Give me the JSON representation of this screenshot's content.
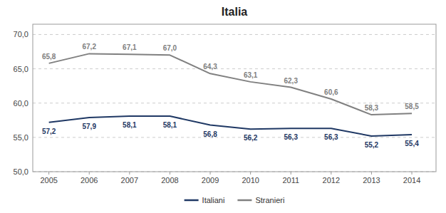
{
  "chart_data": {
    "type": "line",
    "title": "Italia",
    "x": [
      2005,
      2006,
      2007,
      2008,
      2009,
      2010,
      2011,
      2012,
      2013,
      2014
    ],
    "xlim": [
      2004.6,
      2014.6
    ],
    "xticks": [
      2005,
      2006,
      2007,
      2008,
      2009,
      2010,
      2011,
      2012,
      2013,
      2014
    ],
    "ylim": [
      50.0,
      71.5
    ],
    "yticks": [
      {
        "value": 50.0,
        "label": "50,0"
      },
      {
        "value": 55.0,
        "label": "55,0"
      },
      {
        "value": 60.0,
        "label": "60,0"
      },
      {
        "value": 65.0,
        "label": "65,0"
      },
      {
        "value": 70.0,
        "label": "70,0"
      }
    ],
    "grid": true,
    "legend": "bottom",
    "data_labels": true,
    "series": [
      {
        "name": "Italiani",
        "color": "#1F3864",
        "values": [
          57.2,
          57.9,
          58.1,
          58.1,
          56.8,
          56.2,
          56.3,
          56.3,
          55.2,
          55.4
        ],
        "value_labels": [
          "57,2",
          "57,9",
          "58,1",
          "58,1",
          "56,8",
          "56,2",
          "56,3",
          "56,3",
          "55,2",
          "55,4"
        ]
      },
      {
        "name": "Stranieri",
        "color": "#808080",
        "values": [
          65.8,
          67.2,
          67.1,
          67.0,
          64.3,
          63.1,
          62.3,
          60.6,
          58.3,
          58.5
        ],
        "value_labels": [
          "65,8",
          "67,2",
          "67,1",
          "67,0",
          "64,3",
          "63,1",
          "62,3",
          "60,6",
          "58,3",
          "58,5"
        ]
      }
    ]
  }
}
